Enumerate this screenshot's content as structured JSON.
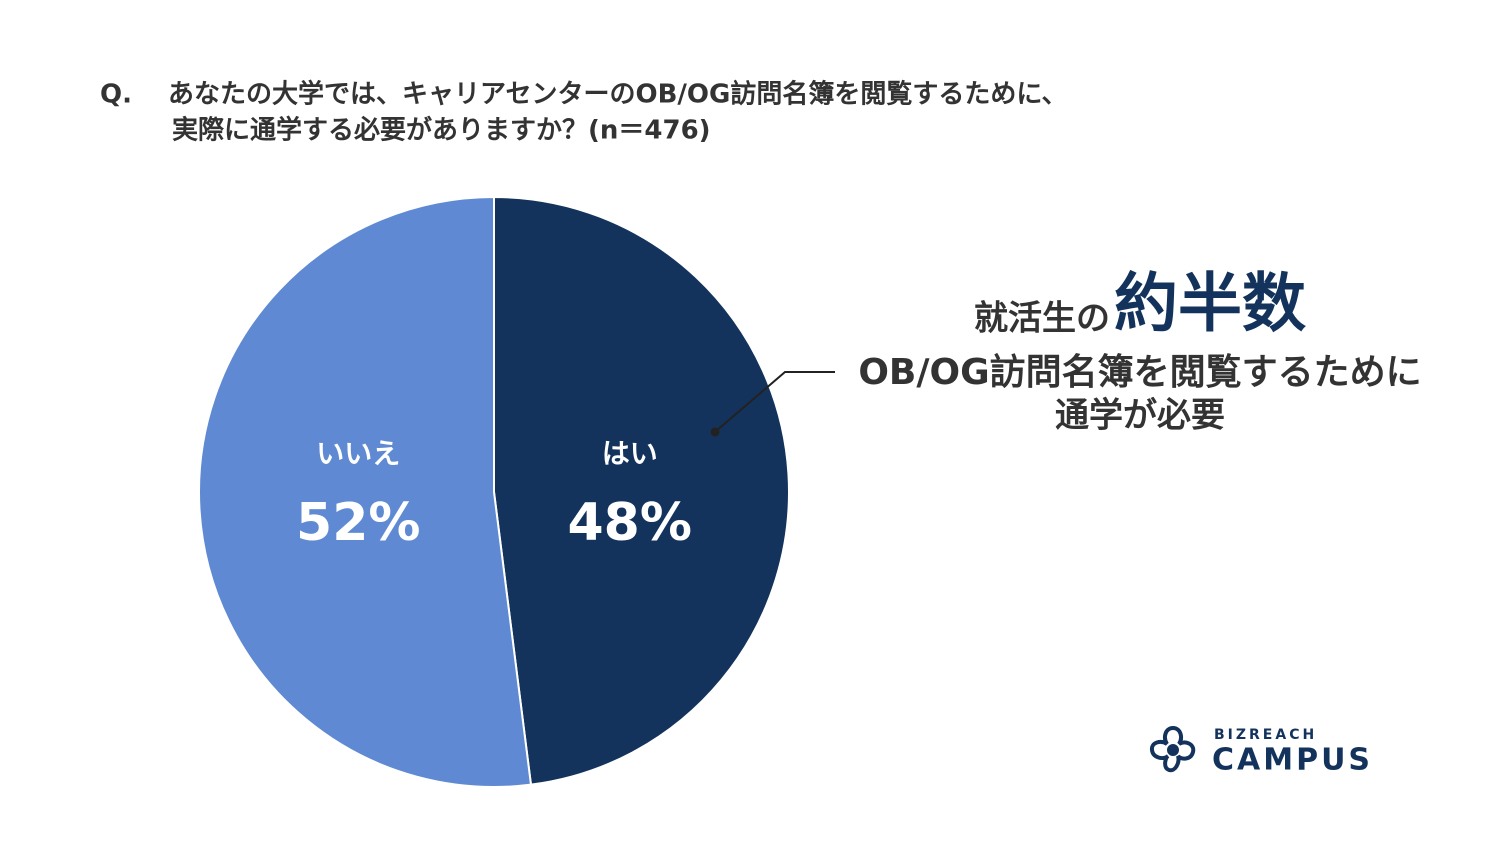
{
  "chart_data": {
    "type": "pie",
    "question_label": "Q.",
    "title_lines": [
      "あなたの大学では、キャリアセンターのOB/OG訪問名簿を閲覧するために、",
      "実際に通学する必要がありますか？(n＝476)"
    ],
    "categories": [
      "はい",
      "いいえ"
    ],
    "values": [
      48,
      52
    ],
    "value_labels": [
      "48%",
      "52%"
    ],
    "colors": [
      "#14335c",
      "#5f8ad3"
    ],
    "annotation": {
      "prefix": "就活生の",
      "emphasis": "約半数",
      "lines": [
        "OB/OG訪問名簿を閲覧するために",
        "通学が必要"
      ]
    }
  },
  "logo": {
    "top": "BIZREACH",
    "bottom": "CAMPUS"
  }
}
